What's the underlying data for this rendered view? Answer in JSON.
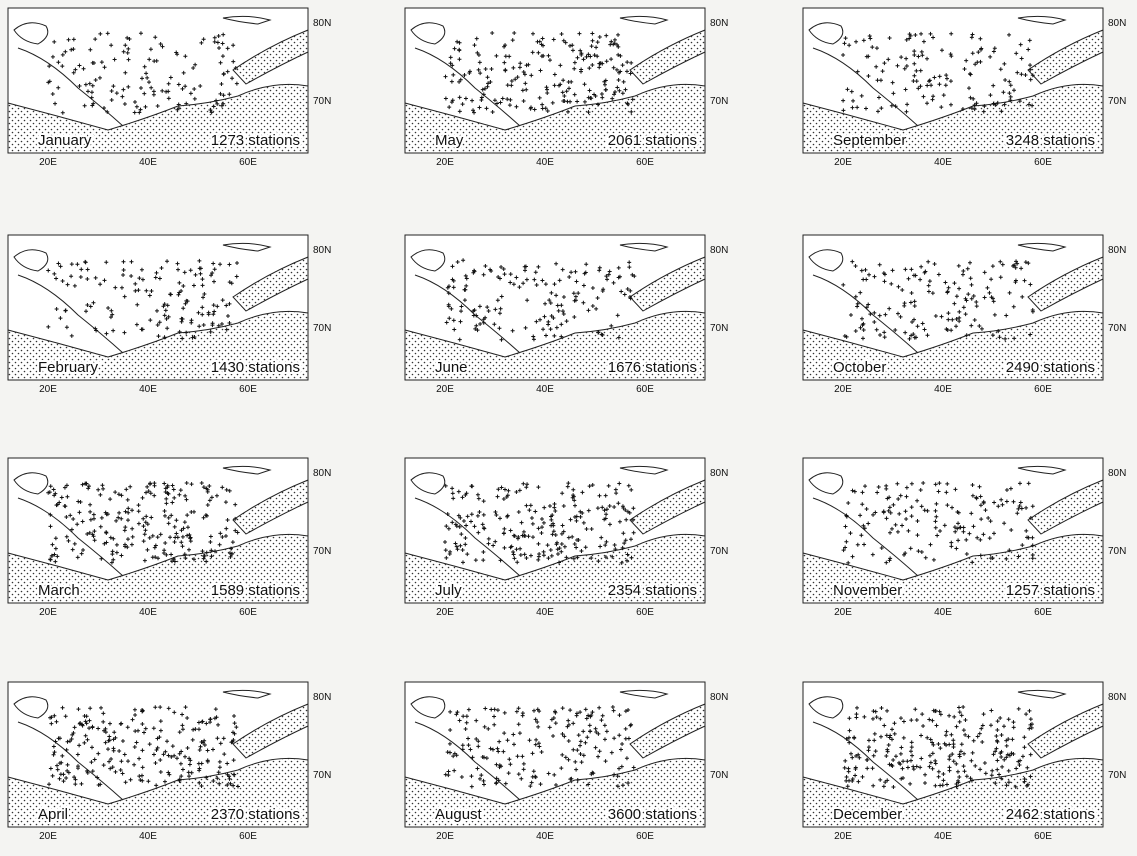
{
  "axes": {
    "lon": [
      "20E",
      "40E",
      "60E"
    ],
    "lat": [
      "80N",
      "70N"
    ]
  },
  "panels": [
    {
      "month": "January",
      "stations": "1273 stations"
    },
    {
      "month": "February",
      "stations": "1430 stations"
    },
    {
      "month": "March",
      "stations": "1589 stations"
    },
    {
      "month": "April",
      "stations": "2370 stations"
    },
    {
      "month": "May",
      "stations": "2061 stations"
    },
    {
      "month": "June",
      "stations": "1676 stations"
    },
    {
      "month": "July",
      "stations": "2354 stations"
    },
    {
      "month": "August",
      "stations": "3600 stations"
    },
    {
      "month": "September",
      "stations": "3248 stations"
    },
    {
      "month": "October",
      "stations": "2490 stations"
    },
    {
      "month": "November",
      "stations": "1257 stations"
    },
    {
      "month": "December",
      "stations": "2462 stations"
    }
  ]
}
